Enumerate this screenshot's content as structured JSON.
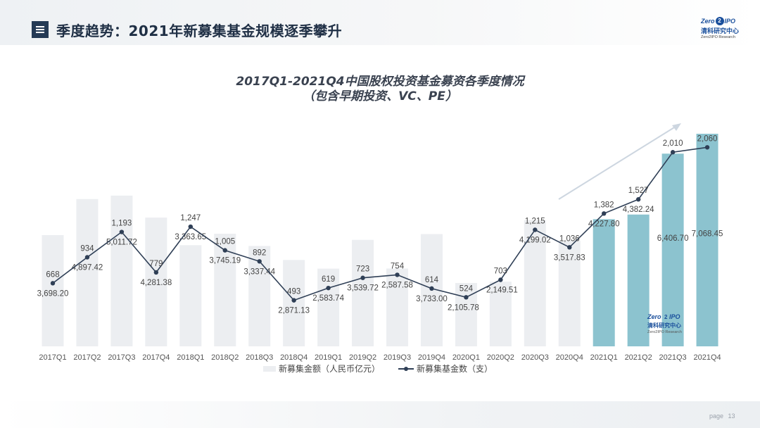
{
  "header": {
    "title": "季度趋势：2021年新募集基金规模逐季攀升",
    "logo": {
      "brand_left": "Zero",
      "brand_mid": "2",
      "brand_right": "IPO",
      "cn": "清科研究中心",
      "en": "Zero2IPO Research"
    }
  },
  "footer": {
    "page_label": "page",
    "page_number": "13"
  },
  "chart_data": {
    "type": "bar",
    "title": "2017Q1-2021Q4中国股权投资基金募资各季度情况",
    "subtitle": "（包含早期投资、VC、PE）",
    "categories": [
      "2017Q1",
      "2017Q2",
      "2017Q3",
      "2017Q4",
      "2018Q1",
      "2018Q2",
      "2018Q3",
      "2018Q4",
      "2019Q1",
      "2019Q2",
      "2019Q3",
      "2019Q4",
      "2020Q1",
      "2020Q2",
      "2020Q3",
      "2020Q4",
      "2021Q1",
      "2021Q2",
      "2021Q3",
      "2021Q4"
    ],
    "series": [
      {
        "name": "新募集金额（人民币亿元）",
        "type": "bar",
        "values": [
          3698.2,
          4897.42,
          5011.72,
          4281.38,
          3363.65,
          3745.19,
          3337.44,
          2871.13,
          2583.74,
          3539.72,
          2587.58,
          3733.0,
          2105.78,
          2149.51,
          4199.02,
          3517.83,
          4227.8,
          4382.24,
          6406.7,
          7068.45
        ],
        "labels": [
          "3,698.20",
          "4,897.42",
          "5,011.72",
          "4,281.38",
          "3,363.65",
          "3,745.19",
          "3,337.44",
          "2,871.13",
          "2,583.74",
          "3,539.72",
          "2,587.58",
          "3,733.00",
          "2,105.78",
          "2,149.51",
          "4,199.02",
          "3,517.83",
          "4,227.80",
          "4,382.24",
          "6,406.70",
          "7,068.45"
        ],
        "color": "#eceef1",
        "highlight_color": "#8cc3cf",
        "highlight_from_index": 16
      },
      {
        "name": "新募集基金数（支）",
        "type": "line",
        "values": [
          668,
          934,
          1193,
          779,
          1247,
          1005,
          892,
          493,
          619,
          723,
          754,
          614,
          524,
          703,
          1215,
          1036,
          1382,
          1527,
          2010,
          2060
        ],
        "labels": [
          "668",
          "934",
          "1,193",
          "779",
          "1,247",
          "1,005",
          "892",
          "493",
          "619",
          "723",
          "754",
          "614",
          "524",
          "703",
          "1,215",
          "1,036",
          "1,382",
          "1,527",
          "2,010",
          "2,060"
        ],
        "color": "#2f3f56"
      }
    ],
    "bar_axis_range": [
      0,
      7068.45
    ],
    "line_axis_range": [
      0,
      2400
    ],
    "legend_position": "bottom-center",
    "grid": false,
    "trend_arrow": true,
    "watermark": {
      "brand_left": "Zero",
      "brand_mid": "2",
      "brand_right": "IPO",
      "cn": "清科研究中心",
      "en": "Zero2IPO Research"
    }
  }
}
